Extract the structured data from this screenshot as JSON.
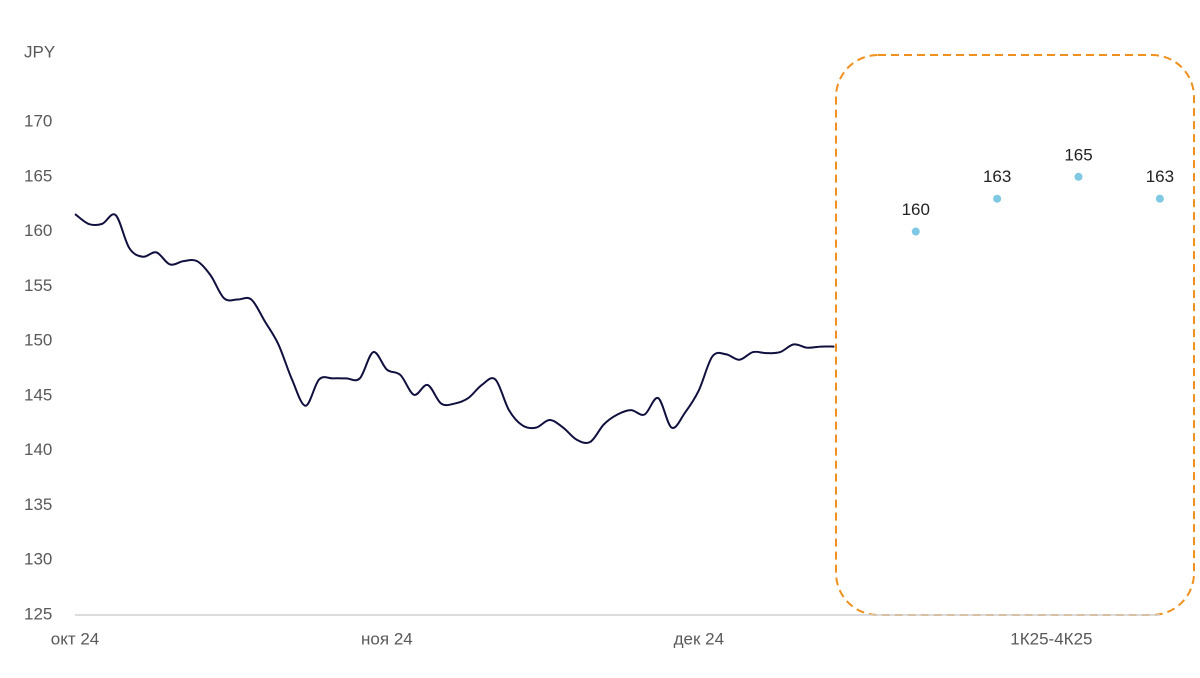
{
  "chart_data": {
    "type": "line",
    "y_label": "JPY",
    "xlim": [
      0,
      82
    ],
    "ylim": [
      125,
      170
    ],
    "yticks": [
      125,
      130,
      135,
      140,
      145,
      150,
      155,
      160,
      165,
      170
    ],
    "xticks": [
      {
        "value": 0,
        "label": "окт 24"
      },
      {
        "value": 23,
        "label": "ноя 24"
      },
      {
        "value": 46,
        "label": "дек 24"
      },
      {
        "value": 72,
        "label": "1К25-4К25"
      }
    ],
    "series": [
      {
        "kind": "line",
        "color": "#10103f",
        "x": [
          0,
          1,
          2,
          3,
          4,
          5,
          6,
          7,
          8,
          9,
          10,
          11,
          12,
          13,
          14,
          15,
          16,
          17,
          18,
          19,
          20,
          21,
          22,
          23,
          24,
          25,
          26,
          27,
          28,
          29,
          30,
          31,
          32,
          33,
          34,
          35,
          36,
          37,
          38,
          39,
          40,
          41,
          42,
          43,
          44,
          45,
          46,
          47,
          48,
          49,
          50,
          51,
          52,
          53,
          54,
          55,
          56
        ],
        "values": [
          161.6,
          160.7,
          160.7,
          161.5,
          158.5,
          157.7,
          158.1,
          157.0,
          157.3,
          157.3,
          156.0,
          153.9,
          153.8,
          153.8,
          151.8,
          149.7,
          146.5,
          144.1,
          146.5,
          146.6,
          146.6,
          146.6,
          149.0,
          147.4,
          146.9,
          145.1,
          146.0,
          144.3,
          144.3,
          144.8,
          146.0,
          146.5,
          143.7,
          142.3,
          142.1,
          142.8,
          142.1,
          141.0,
          140.8,
          142.4,
          143.3,
          143.7,
          143.3,
          144.8,
          142.1,
          143.5,
          145.5,
          148.6,
          148.8,
          148.3,
          149.0,
          148.9,
          149.0,
          149.7,
          149.4,
          149.5,
          149.5
        ]
      },
      {
        "kind": "points",
        "color": "#7ec8e3",
        "x": [
          62,
          68,
          74,
          80
        ],
        "values": [
          160,
          163,
          165,
          163
        ]
      }
    ]
  }
}
